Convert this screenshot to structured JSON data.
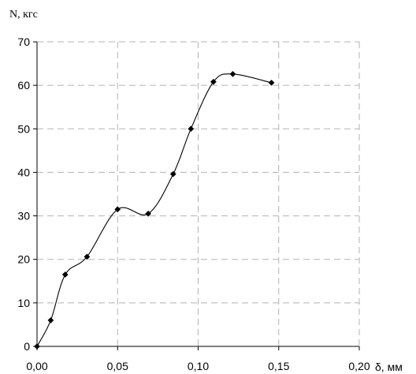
{
  "chart_data": {
    "type": "line",
    "title": "",
    "xlabel": "δ, мм",
    "ylabel": "N, кгс",
    "xlim": [
      0,
      0.2
    ],
    "ylim": [
      0,
      70
    ],
    "xticks": [
      0,
      0.05,
      0.1,
      0.15,
      0.2
    ],
    "xtick_labels": [
      "0,00",
      "0,05",
      "0,10",
      "0,15",
      "0,20"
    ],
    "yticks": [
      0,
      10,
      20,
      30,
      40,
      50,
      60,
      70
    ],
    "ytick_labels": [
      "0",
      "10",
      "20",
      "30",
      "40",
      "50",
      "60",
      "70"
    ],
    "grid": true,
    "legend": "none",
    "marker": "diamond",
    "line_color": "#000000",
    "grid_color": "#b3b3b3",
    "series": [
      {
        "x": [
          0,
          0.0085,
          0.0175,
          0.031,
          0.05,
          0.069,
          0.0845,
          0.0955,
          0.1095,
          0.1215,
          0.1455
        ],
        "y": [
          0,
          6.0,
          16.5,
          20.6,
          31.5,
          30.5,
          39.6,
          50.0,
          60.8,
          62.6,
          60.6
        ]
      }
    ]
  }
}
